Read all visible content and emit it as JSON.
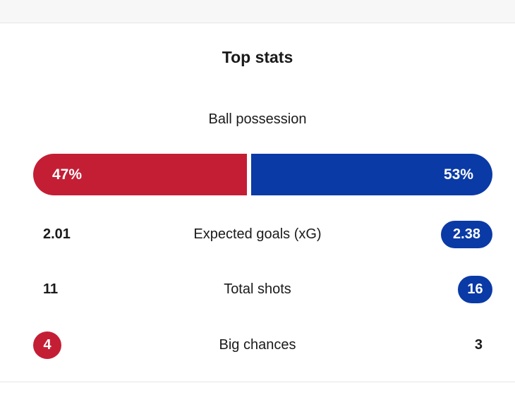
{
  "colors": {
    "home": "#c41e35",
    "away": "#0a3aa6"
  },
  "section": {
    "title": "Top stats"
  },
  "possession": {
    "label": "Ball possession",
    "home_text": "47%",
    "away_text": "53%",
    "home_value": 47,
    "away_value": 53
  },
  "stats": {
    "xg": {
      "label": "Expected goals (xG)",
      "home": "2.01",
      "away": "2.38"
    },
    "shots": {
      "label": "Total shots",
      "home": "11",
      "away": "16"
    },
    "big_chances": {
      "label": "Big chances",
      "home": "4",
      "away": "3"
    }
  }
}
